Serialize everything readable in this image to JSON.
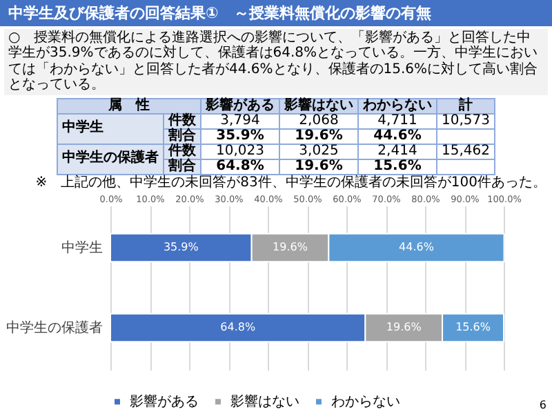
{
  "chart_data": [
    {
      "type": "other",
      "title": "中学生及び保護者の回答結果①　～授業料無償化の影響の有無",
      "ylabel": "属　性",
      "annotations": [
        "○　授業料の無償化による進路選択への影響について、「影響がある」と回答した中学生が35.9%であるのに対して、保護者は64.8%となっている。一方、中学生においては「わからない」と回答した者が44.6%となり、保護者の15.6%に対して高い割合となっている。",
        "※　上記の他、中学生の未回答が83件、中学生の保護者の未回答が100件あった。"
      ],
      "categories": [
        "影響がある",
        "影響はない",
        "わからない",
        "計"
      ],
      "y_categories": [
        "件数",
        "割合",
        "件数",
        "割合"
      ],
      "y2_categories": [
        "中学生",
        "中学生",
        "中学生の保護者",
        "中学生の保護者"
      ],
      "cell_labels": [
        [
          "3,794",
          "2,068",
          "4,711",
          "10,573"
        ],
        [
          "35.9%",
          "19.6%",
          "44.6%",
          null
        ],
        [
          "10,023",
          "3,025",
          "2,414",
          "15,462"
        ],
        [
          "64.8%",
          "19.6%",
          "15.6%",
          null
        ]
      ]
    },
    {
      "type": "bar",
      "orientation": "horizontal",
      "stacked": true,
      "categories": [
        "中学生",
        "中学生の保護者"
      ],
      "series": [
        {
          "name": "影響がある",
          "color": "#4472c4",
          "values": [
            35.9,
            64.8
          ],
          "value_labels": [
            "35.9%",
            "64.8%"
          ]
        },
        {
          "name": "影響はない",
          "color": "#a5a5a5",
          "values": [
            19.6,
            19.6
          ],
          "value_labels": [
            "19.6%",
            "19.6%"
          ]
        },
        {
          "name": "わからない",
          "color": "#5b9bd5",
          "values": [
            44.6,
            15.6
          ],
          "value_labels": [
            "44.6%",
            "15.6%"
          ]
        }
      ],
      "xlim": [
        0,
        100
      ],
      "xticks": [
        {
          "value": 0,
          "label": "0.0%"
        },
        {
          "value": 10,
          "label": "10.0%"
        },
        {
          "value": 20,
          "label": "20.0%"
        },
        {
          "value": 30,
          "label": "30.0%"
        },
        {
          "value": 40,
          "label": "40.0%"
        },
        {
          "value": 50,
          "label": "50.0%"
        },
        {
          "value": 60,
          "label": "60.0%"
        },
        {
          "value": 70,
          "label": "70.0%"
        },
        {
          "value": 80,
          "label": "80.0%"
        },
        {
          "value": 90,
          "label": "90.0%"
        },
        {
          "value": 100,
          "label": "100.0%"
        }
      ],
      "grid": "x",
      "legend": "bottom",
      "annotations": [
        "6"
      ]
    }
  ]
}
